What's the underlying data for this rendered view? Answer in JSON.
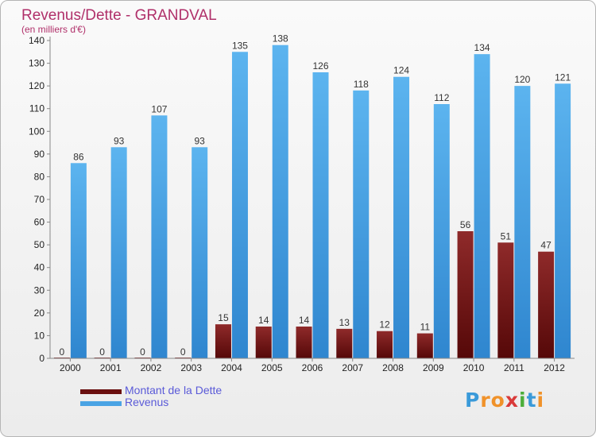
{
  "chart_data": {
    "type": "bar",
    "title": "Revenus/Dette - GRANDVAL",
    "subtitle": "(en milliers d'€)",
    "categories": [
      "2000",
      "2001",
      "2002",
      "2003",
      "2004",
      "2005",
      "2006",
      "2007",
      "2008",
      "2009",
      "2010",
      "2011",
      "2012"
    ],
    "series": [
      {
        "name": "Montant de la Dette",
        "values": [
          0,
          0,
          0,
          0,
          15,
          14,
          14,
          13,
          12,
          11,
          56,
          51,
          47
        ],
        "color": "#7a1a1a"
      },
      {
        "name": "Revenus",
        "values": [
          86,
          93,
          107,
          93,
          135,
          138,
          126,
          118,
          124,
          112,
          134,
          120,
          121
        ],
        "color": "#4aa3e4"
      }
    ],
    "ylim": [
      0,
      140
    ],
    "yticks": [
      0,
      10,
      20,
      30,
      40,
      50,
      60,
      70,
      80,
      90,
      100,
      110,
      120,
      130,
      140
    ],
    "grid": false,
    "legend_position": "bottom-left"
  },
  "logo": {
    "letters": [
      "P",
      "r",
      "o",
      "x",
      "i",
      "t",
      "i"
    ],
    "colors": [
      "#3a9ad9",
      "#f0922a",
      "#f0922a",
      "#d93a3a",
      "#4cae3a",
      "#3a9ad9",
      "#f0922a"
    ]
  }
}
